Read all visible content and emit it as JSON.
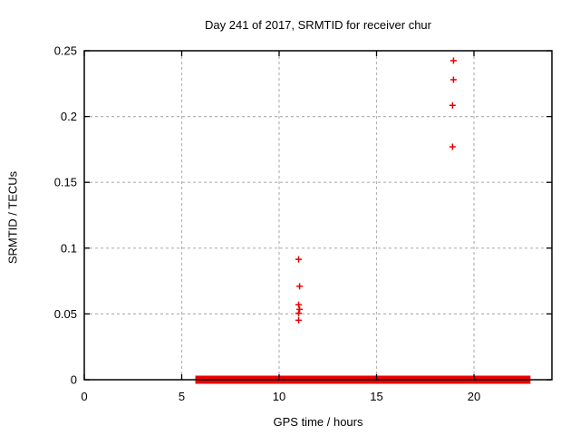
{
  "chart_data": {
    "type": "scatter",
    "title": "Day 241 of 2017, SRMTID for receiver chur",
    "xlabel": "GPS time / hours",
    "ylabel": "SRMTID / TECUs",
    "xlim": [
      0,
      24
    ],
    "ylim": [
      0,
      0.25
    ],
    "x_ticks": {
      "values": [
        0,
        5,
        10,
        15,
        20
      ],
      "labels": [
        "0",
        "5",
        "10",
        "15",
        "20"
      ]
    },
    "y_ticks": {
      "values": [
        0,
        0.05,
        0.1,
        0.15,
        0.2,
        0.25
      ],
      "labels": [
        "0",
        "0.05",
        "0.1",
        "0.15",
        "0.2",
        "0.25"
      ]
    },
    "grid": true,
    "legend": false,
    "marker": "plus",
    "colors": {
      "points": "#ee0000",
      "grid": "#b4b4b4",
      "axis": "#000000"
    },
    "series": [
      {
        "name": "SRMTID",
        "points": [
          [
            11.0,
            0.0915
          ],
          [
            11.05,
            0.071
          ],
          [
            11.0,
            0.057
          ],
          [
            11.05,
            0.0535
          ],
          [
            11.0,
            0.0505
          ],
          [
            11.0,
            0.0452
          ],
          [
            18.95,
            0.2425
          ],
          [
            18.95,
            0.228
          ],
          [
            18.9,
            0.2085
          ],
          [
            18.9,
            0.177
          ]
        ]
      }
    ],
    "zero_band": {
      "y": 0,
      "x_start": 5.7,
      "x_end": 22.9,
      "description": "dense run of overlapping + markers at ~0 TECUs forming a solid red bar on the x-axis"
    }
  }
}
